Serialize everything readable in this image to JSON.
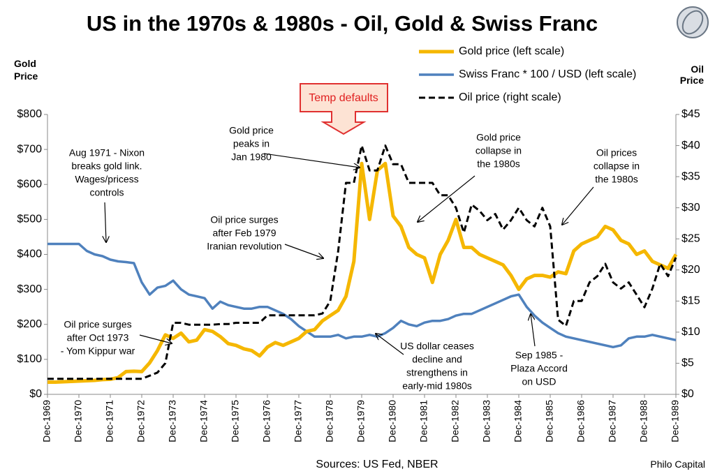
{
  "chart_data": {
    "type": "line",
    "title": "US in the 1970s & 1980s - Oil, Gold & Swiss Franc",
    "y_label": [
      "Gold",
      "Price"
    ],
    "y2_label": [
      "Oil",
      "Price"
    ],
    "source": "Sources: US Fed, NBER",
    "credit": "Philo Capital",
    "callout": "Temp defaults",
    "legend": "upper right",
    "x": [
      "1969-12",
      "1970-03",
      "1970-06",
      "1970-09",
      "1970-12",
      "1971-03",
      "1971-06",
      "1971-09",
      "1971-12",
      "1972-03",
      "1972-06",
      "1972-09",
      "1972-12",
      "1973-03",
      "1973-06",
      "1973-09",
      "1973-12",
      "1974-03",
      "1974-06",
      "1974-09",
      "1974-12",
      "1975-03",
      "1975-06",
      "1975-09",
      "1975-12",
      "1976-03",
      "1976-06",
      "1976-09",
      "1976-12",
      "1977-03",
      "1977-06",
      "1977-09",
      "1977-12",
      "1978-03",
      "1978-06",
      "1978-09",
      "1978-12",
      "1979-03",
      "1979-06",
      "1979-09",
      "1979-12",
      "1980-03",
      "1980-06",
      "1980-09",
      "1980-12",
      "1981-03",
      "1981-06",
      "1981-09",
      "1981-12",
      "1982-03",
      "1982-06",
      "1982-09",
      "1982-12",
      "1983-03",
      "1983-06",
      "1983-09",
      "1983-12",
      "1984-03",
      "1984-06",
      "1984-09",
      "1984-12",
      "1985-03",
      "1985-06",
      "1985-09",
      "1985-12",
      "1986-03",
      "1986-06",
      "1986-09",
      "1986-12",
      "1987-03",
      "1987-06",
      "1987-09",
      "1987-12",
      "1988-03",
      "1988-06",
      "1988-09",
      "1988-12",
      "1989-03",
      "1989-06",
      "1989-09",
      "1989-12"
    ],
    "xlim": [
      "1969-12",
      "1989-12"
    ],
    "xticks": [
      {
        "value": "1969-12",
        "label": "Dec-1969"
      },
      {
        "value": "1970-12",
        "label": "Dec-1970"
      },
      {
        "value": "1971-12",
        "label": "Dec-1971"
      },
      {
        "value": "1972-12",
        "label": "Dec-1972"
      },
      {
        "value": "1973-12",
        "label": "Dec-1973"
      },
      {
        "value": "1974-12",
        "label": "Dec-1974"
      },
      {
        "value": "1975-12",
        "label": "Dec-1975"
      },
      {
        "value": "1976-12",
        "label": "Dec-1976"
      },
      {
        "value": "1977-12",
        "label": "Dec-1977"
      },
      {
        "value": "1978-12",
        "label": "Dec-1978"
      },
      {
        "value": "1979-12",
        "label": "Dec-1979"
      },
      {
        "value": "1980-12",
        "label": "Dec-1980"
      },
      {
        "value": "1981-12",
        "label": "Dec-1981"
      },
      {
        "value": "1982-12",
        "label": "Dec-1982"
      },
      {
        "value": "1983-12",
        "label": "Dec-1983"
      },
      {
        "value": "1984-12",
        "label": "Dec-1984"
      },
      {
        "value": "1985-12",
        "label": "Dec-1985"
      },
      {
        "value": "1986-12",
        "label": "Dec-1986"
      },
      {
        "value": "1987-12",
        "label": "Dec-1987"
      },
      {
        "value": "1988-12",
        "label": "Dec-1988"
      },
      {
        "value": "1989-12",
        "label": "Dec-1989"
      }
    ],
    "ylim": [
      0,
      800
    ],
    "yticks": [
      {
        "value": 0,
        "label": "$0"
      },
      {
        "value": 100,
        "label": "$100"
      },
      {
        "value": 200,
        "label": "$200"
      },
      {
        "value": 300,
        "label": "$300"
      },
      {
        "value": 400,
        "label": "$400"
      },
      {
        "value": 500,
        "label": "$500"
      },
      {
        "value": 600,
        "label": "$600"
      },
      {
        "value": 700,
        "label": "$700"
      },
      {
        "value": 800,
        "label": "$800"
      }
    ],
    "y2lim": [
      0,
      45
    ],
    "y2ticks": [
      {
        "value": 0,
        "label": "$0"
      },
      {
        "value": 5,
        "label": "$5"
      },
      {
        "value": 10,
        "label": "$10"
      },
      {
        "value": 15,
        "label": "$15"
      },
      {
        "value": 20,
        "label": "$20"
      },
      {
        "value": 25,
        "label": "$25"
      },
      {
        "value": 30,
        "label": "$30"
      },
      {
        "value": 35,
        "label": "$35"
      },
      {
        "value": 40,
        "label": "$40"
      },
      {
        "value": 45,
        "label": "$45"
      }
    ],
    "series": [
      {
        "name": "Gold price (left scale)",
        "color": "#f5b700",
        "values": [
          35,
          35,
          36,
          37,
          38,
          39,
          40,
          42,
          43,
          48,
          65,
          66,
          65,
          90,
          125,
          170,
          160,
          175,
          150,
          155,
          185,
          180,
          165,
          145,
          140,
          130,
          125,
          110,
          135,
          148,
          140,
          150,
          160,
          180,
          185,
          210,
          225,
          240,
          280,
          380,
          660,
          500,
          640,
          660,
          510,
          480,
          420,
          400,
          390,
          320,
          400,
          440,
          500,
          420,
          420,
          400,
          390,
          380,
          370,
          340,
          300,
          330,
          340,
          340,
          335,
          350,
          345,
          410,
          430,
          440,
          450,
          480,
          470,
          440,
          430,
          400,
          410,
          380,
          370,
          360,
          400
        ]
      },
      {
        "name": "Swiss Franc * 100 / USD (left scale)",
        "color": "#4f81bd",
        "values": [
          430,
          430,
          430,
          430,
          430,
          410,
          400,
          395,
          385,
          380,
          378,
          375,
          320,
          285,
          305,
          310,
          325,
          300,
          285,
          280,
          275,
          245,
          265,
          255,
          250,
          245,
          245,
          250,
          250,
          240,
          230,
          215,
          195,
          180,
          165,
          165,
          165,
          170,
          160,
          165,
          165,
          170,
          165,
          175,
          190,
          210,
          200,
          195,
          205,
          210,
          210,
          215,
          225,
          230,
          230,
          240,
          250,
          260,
          270,
          280,
          285,
          250,
          225,
          205,
          190,
          175,
          165,
          160,
          155,
          150,
          145,
          140,
          135,
          140,
          160,
          165,
          165,
          170,
          165,
          160,
          155
        ]
      },
      {
        "name": "Oil price (right scale)",
        "color": "#000000",
        "axis": "y2",
        "dash": true,
        "values": [
          2.5,
          2.5,
          2.5,
          2.5,
          2.5,
          2.5,
          2.5,
          2.5,
          2.5,
          2.5,
          2.5,
          2.5,
          2.5,
          3,
          3.5,
          5,
          11.5,
          11.5,
          11.2,
          11.2,
          11.2,
          11.2,
          11.3,
          11.3,
          11.5,
          11.5,
          11.5,
          11.5,
          12.7,
          12.7,
          12.7,
          12.7,
          12.7,
          12.7,
          12.7,
          13,
          15,
          23,
          34,
          34,
          40,
          36,
          36,
          40,
          37,
          37,
          34,
          34,
          34,
          34,
          32,
          32,
          30,
          26,
          30.5,
          29.5,
          28,
          29,
          26.5,
          28,
          30,
          28,
          27,
          30,
          27,
          12,
          11,
          15,
          15,
          18,
          19,
          21,
          18,
          17,
          18,
          16,
          14,
          17,
          21,
          19,
          22
        ]
      }
    ],
    "annotations": [
      [
        "Aug 1971 - Nixon",
        "breaks gold link.",
        "Wages/pricess",
        "controls"
      ],
      [
        "Oil price surges",
        "after Oct 1973",
        "- Yom Kippur war"
      ],
      [
        "Gold price",
        "peaks in",
        "Jan 1980"
      ],
      [
        "Oil price surges",
        "after Feb 1979",
        "Iranian revolution"
      ],
      [
        "Gold price",
        "collapse in",
        "the 1980s"
      ],
      [
        "US dollar ceases",
        "decline and",
        "strengthens in",
        "early-mid 1980s"
      ],
      [
        "Oil prices",
        "collapse in",
        "the 1980s"
      ],
      [
        "Sep 1985 -",
        "Plaza Accord",
        "on USD"
      ]
    ]
  }
}
